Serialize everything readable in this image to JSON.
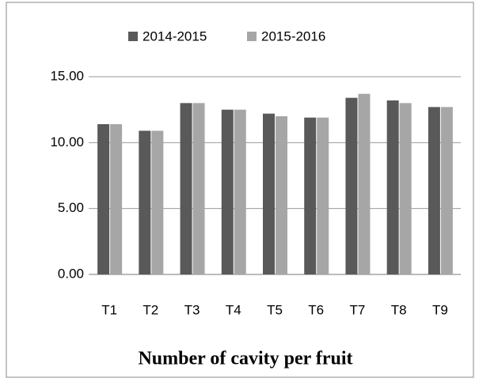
{
  "chart_data": {
    "type": "bar",
    "title": "Number of cavity per fruit",
    "categories": [
      "T1",
      "T2",
      "T3",
      "T4",
      "T5",
      "T6",
      "T7",
      "T8",
      "T9"
    ],
    "series": [
      {
        "name": "2014-2015",
        "color": "#595959",
        "values": [
          11.4,
          10.9,
          13.0,
          12.5,
          12.2,
          11.9,
          13.4,
          13.2,
          12.7
        ]
      },
      {
        "name": "2015-2016",
        "color": "#a6a6a6",
        "values": [
          11.4,
          10.9,
          13.0,
          12.5,
          12.0,
          11.9,
          13.7,
          13.0,
          12.7
        ]
      }
    ],
    "ylim": [
      0,
      15
    ],
    "yticks": [
      {
        "value": 0,
        "label": "0.00"
      },
      {
        "value": 5,
        "label": "5.00"
      },
      {
        "value": 10,
        "label": "10.00"
      },
      {
        "value": 15,
        "label": "15.00"
      }
    ],
    "grid": true,
    "legend": "top"
  }
}
